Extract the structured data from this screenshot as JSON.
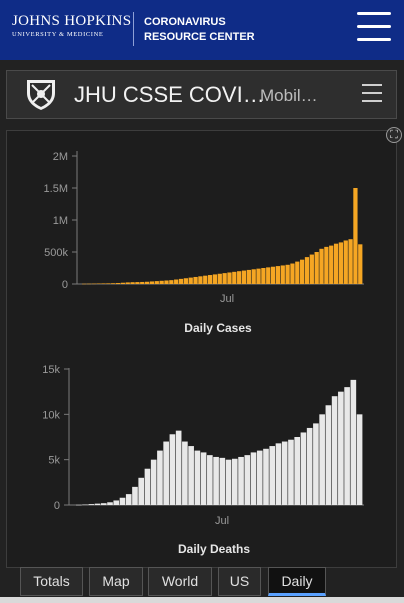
{
  "header": {
    "logo_main": "JOHNS HOPKINS",
    "logo_sub": "UNIVERSITY & MEDICINE",
    "title_line1": "CORONAVIRUS",
    "title_line2": "RESOURCE CENTER"
  },
  "dashboard": {
    "title": "JHU CSSE COVI…",
    "subtitle": "Mobil…"
  },
  "tabs": [
    {
      "label": "Totals",
      "active": false
    },
    {
      "label": "Map",
      "active": false
    },
    {
      "label": "World",
      "active": false
    },
    {
      "label": "US",
      "active": false
    },
    {
      "label": "Daily",
      "active": true
    }
  ],
  "colors": {
    "header_bg": "#0f2c87",
    "cases_bar": "#f5a623",
    "deaths_bar": "#e8e8e8",
    "panel_bg": "#1d1d1d"
  },
  "chart_data": [
    {
      "type": "bar",
      "title": "Daily Cases",
      "x_tick_labels": [
        "Jul"
      ],
      "y_tick_labels": [
        "0",
        "500k",
        "1M",
        "1.5M",
        "2M"
      ],
      "ylim": [
        0,
        2000000
      ],
      "grid": false,
      "series": [
        {
          "values": [
            4000,
            5000,
            6000,
            8000,
            9000,
            10000,
            12000,
            15000,
            20000,
            25000,
            28000,
            30000,
            32000,
            35000,
            40000,
            45000,
            50000,
            55000,
            60000,
            70000,
            80000,
            90000,
            100000,
            110000,
            120000,
            130000,
            140000,
            150000,
            160000,
            170000,
            180000,
            190000,
            200000,
            210000,
            220000,
            230000,
            240000,
            250000,
            260000,
            270000,
            280000,
            290000,
            300000,
            320000,
            350000,
            380000,
            420000,
            460000,
            500000,
            550000,
            580000,
            600000,
            630000,
            650000,
            680000,
            700000,
            1500000,
            620000
          ]
        }
      ]
    },
    {
      "type": "bar",
      "title": "Daily Deaths",
      "x_tick_labels": [
        "Jul"
      ],
      "y_tick_labels": [
        "0",
        "5k",
        "10k",
        "15k"
      ],
      "ylim": [
        0,
        15000
      ],
      "grid": false,
      "series": [
        {
          "values": [
            20,
            50,
            100,
            150,
            200,
            300,
            500,
            800,
            1200,
            2000,
            3000,
            4000,
            5000,
            6000,
            7000,
            7800,
            8200,
            7000,
            6500,
            6000,
            5800,
            5500,
            5300,
            5200,
            5000,
            5100,
            5300,
            5500,
            5800,
            6000,
            6200,
            6500,
            6800,
            7000,
            7200,
            7500,
            8000,
            8500,
            9000,
            10000,
            11000,
            12000,
            12500,
            13000,
            13800,
            10000
          ]
        }
      ]
    }
  ]
}
